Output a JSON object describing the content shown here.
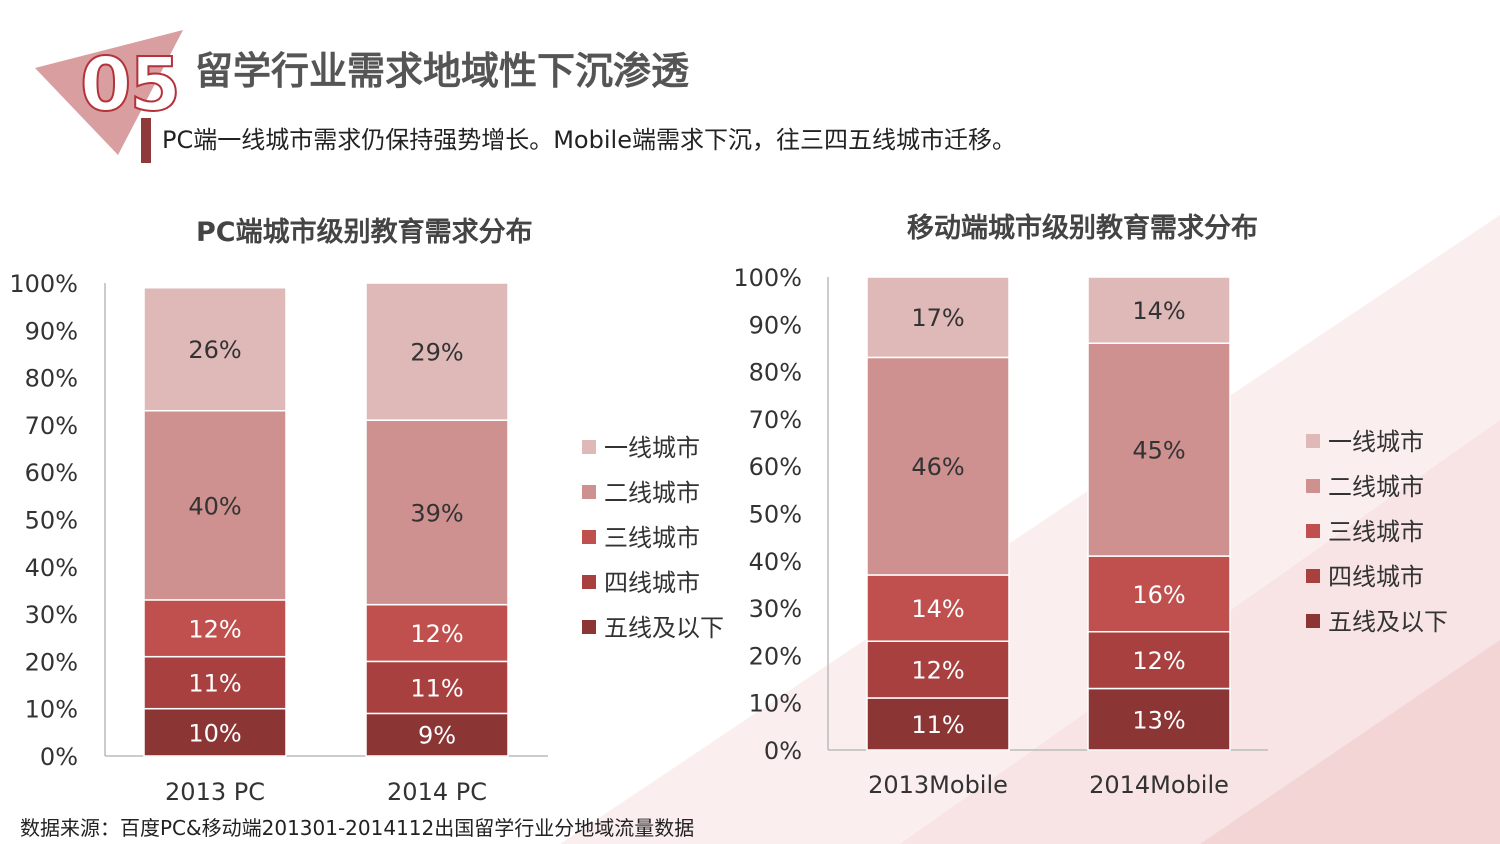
{
  "header": {
    "section_number": "05",
    "title": "留学行业需求地域性下沉渗透",
    "subtitle": "PC端一线城市需求仍保持强势增长。Mobile端需求下沉，往三四五线城市迁移。"
  },
  "source": "数据来源：百度PC&移动端201301-2014112出国留学行业分地域流量数据",
  "colors": {
    "tier1": "#dfb8b8",
    "tier2": "#cf9090",
    "tier3": "#c0504d",
    "tier4": "#a94040",
    "tier5": "#8b3535",
    "accent": "#8e3a3a"
  },
  "chart_data": [
    {
      "type": "bar",
      "stacked": true,
      "title": "PC端城市级别教育需求分布",
      "categories": [
        "2013 PC",
        "2014 PC"
      ],
      "ylim": [
        0,
        100
      ],
      "yticks": [
        "0%",
        "10%",
        "20%",
        "30%",
        "40%",
        "50%",
        "60%",
        "70%",
        "80%",
        "90%",
        "100%"
      ],
      "legend_position": "right",
      "series": [
        {
          "name": "五线及以下",
          "values": [
            10,
            9
          ],
          "labels": [
            "10%",
            "9%"
          ]
        },
        {
          "name": "四线城市",
          "values": [
            11,
            11
          ],
          "labels": [
            "11%",
            "11%"
          ]
        },
        {
          "name": "三线城市",
          "values": [
            12,
            12
          ],
          "labels": [
            "12%",
            "12%"
          ]
        },
        {
          "name": "二线城市",
          "values": [
            40,
            39
          ],
          "labels": [
            "40%",
            "39%"
          ]
        },
        {
          "name": "一线城市",
          "values": [
            26,
            29
          ],
          "labels": [
            "26%",
            "29%"
          ]
        }
      ],
      "legend": [
        "一线城市",
        "二线城市",
        "三线城市",
        "四线城市",
        "五线及以下"
      ]
    },
    {
      "type": "bar",
      "stacked": true,
      "title": "移动端城市级别教育需求分布",
      "categories": [
        "2013Mobile",
        "2014Mobile"
      ],
      "ylim": [
        0,
        100
      ],
      "yticks": [
        "0%",
        "10%",
        "20%",
        "30%",
        "40%",
        "50%",
        "60%",
        "70%",
        "80%",
        "90%",
        "100%"
      ],
      "legend_position": "right",
      "series": [
        {
          "name": "五线及以下",
          "values": [
            11,
            13
          ],
          "labels": [
            "11%",
            "13%"
          ]
        },
        {
          "name": "四线城市",
          "values": [
            12,
            12
          ],
          "labels": [
            "12%",
            "12%"
          ]
        },
        {
          "name": "三线城市",
          "values": [
            14,
            16
          ],
          "labels": [
            "14%",
            "16%"
          ]
        },
        {
          "name": "二线城市",
          "values": [
            46,
            45
          ],
          "labels": [
            "46%",
            "45%"
          ]
        },
        {
          "name": "一线城市",
          "values": [
            17,
            14
          ],
          "labels": [
            "17%",
            "14%"
          ]
        }
      ],
      "legend": [
        "一线城市",
        "二线城市",
        "三线城市",
        "四线城市",
        "五线及以下"
      ]
    }
  ]
}
